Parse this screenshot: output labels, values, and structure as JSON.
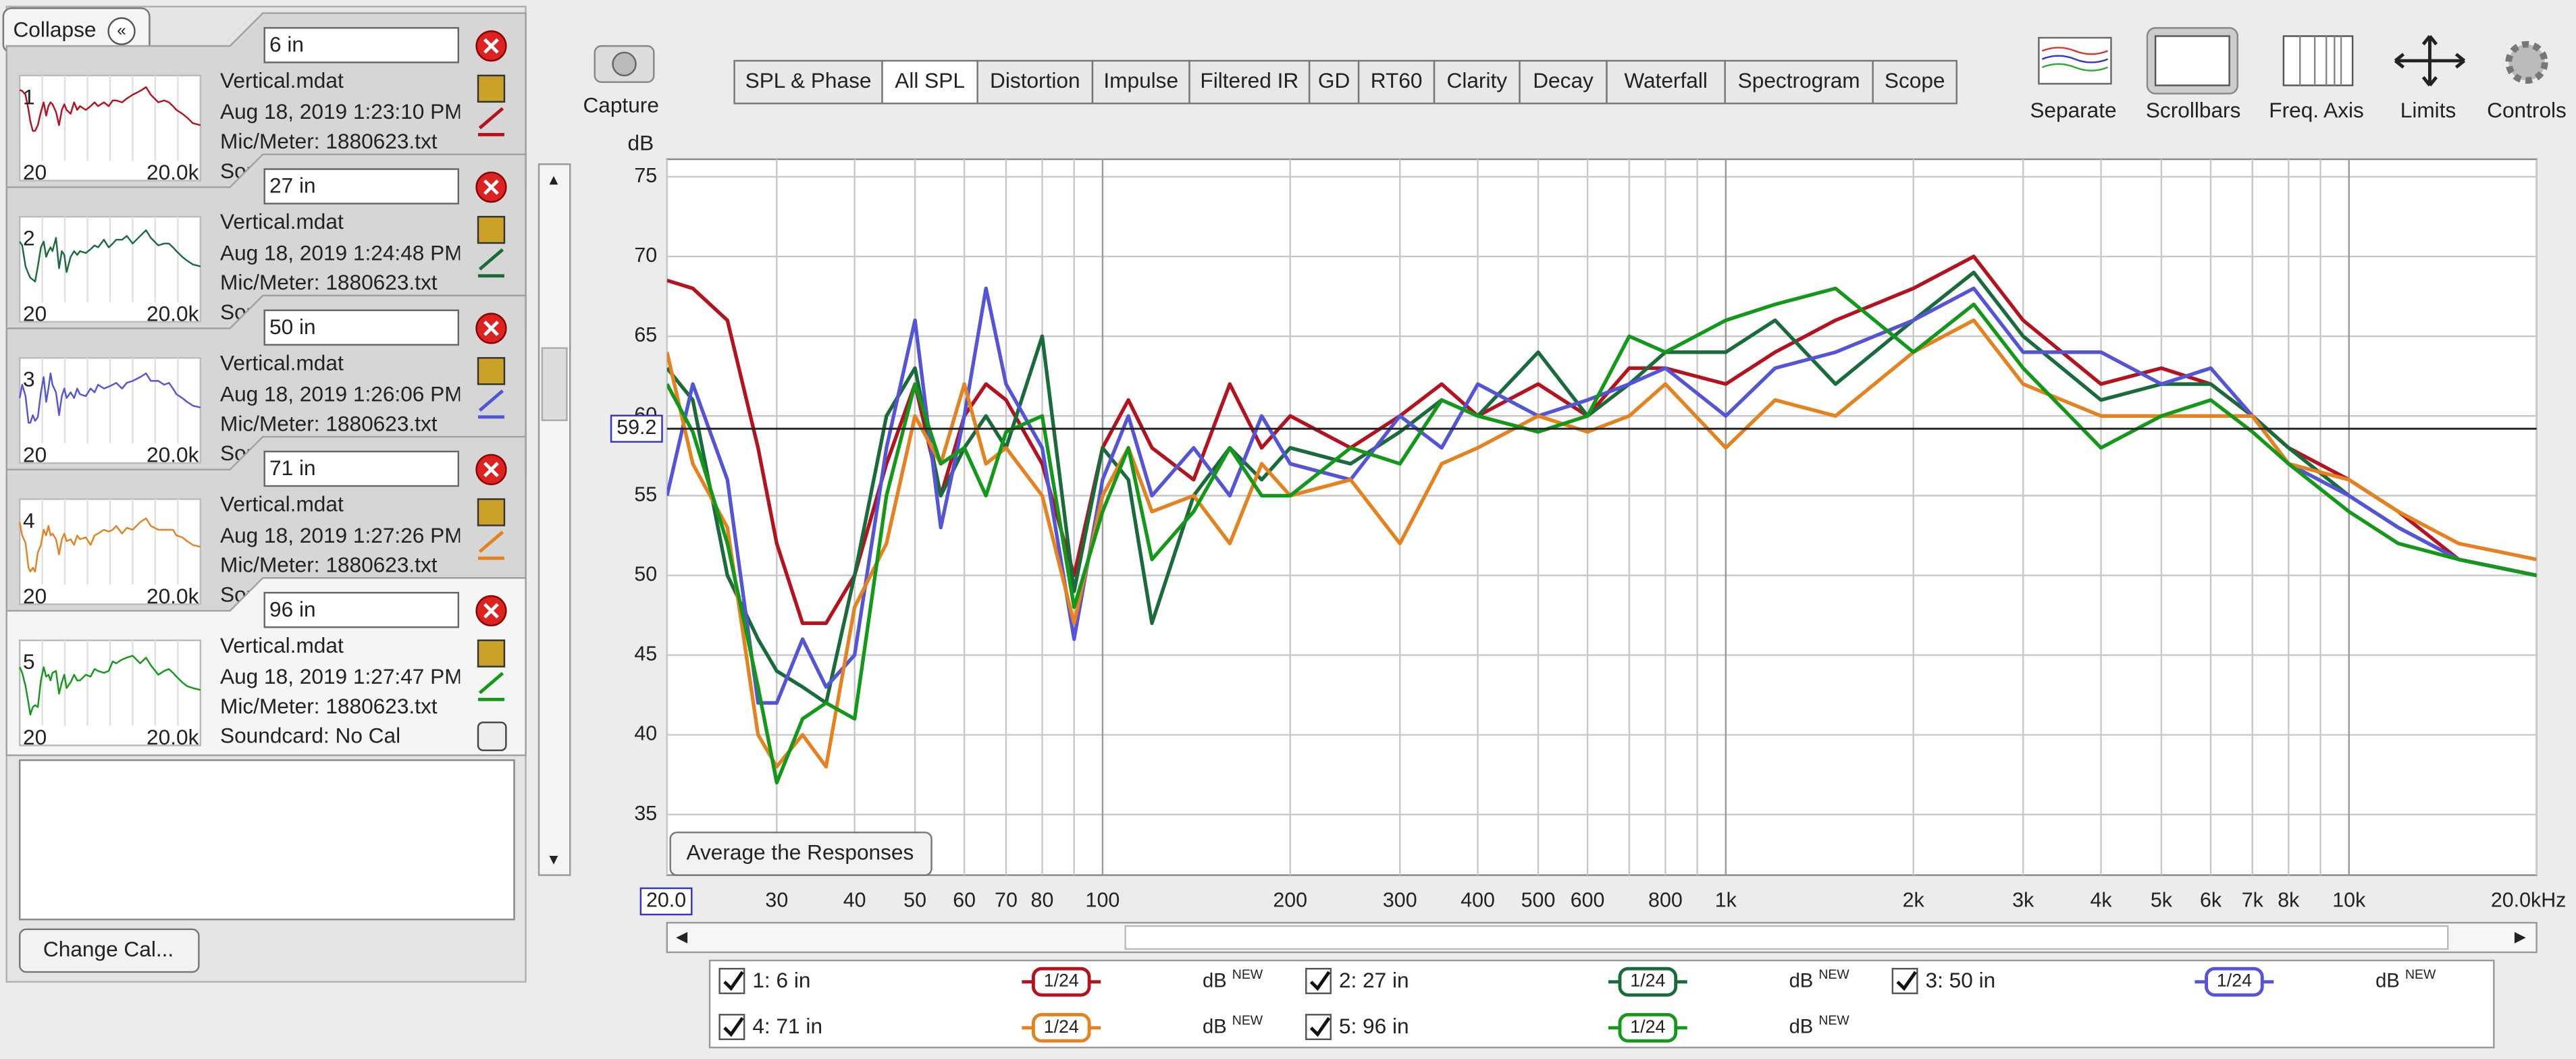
{
  "panel": {
    "collapse": "Collapse",
    "change_cal": "Change Cal..."
  },
  "measurements": [
    {
      "number": "1",
      "name": "6 in",
      "file": "Vertical.mdat",
      "date": "Aug 18, 2019 1:23:10 PM",
      "mic": "Mic/Meter: 1880623.txt",
      "soundcard": "Soundcard: No Cal",
      "thumb_min": "20",
      "thumb_max": "20.0k"
    },
    {
      "number": "2",
      "name": "27 in",
      "file": "Vertical.mdat",
      "date": "Aug 18, 2019 1:24:48 PM",
      "mic": "Mic/Meter: 1880623.txt",
      "soundcard": "Soundcard: No Cal",
      "thumb_min": "20",
      "thumb_max": "20.0k"
    },
    {
      "number": "3",
      "name": "50 in",
      "file": "Vertical.mdat",
      "date": "Aug 18, 2019 1:26:06 PM",
      "mic": "Mic/Meter: 1880623.txt",
      "soundcard": "Soundcard: No Cal",
      "thumb_min": "20",
      "thumb_max": "20.0k"
    },
    {
      "number": "4",
      "name": "71 in",
      "file": "Vertical.mdat",
      "date": "Aug 18, 2019 1:27:26 PM",
      "mic": "Mic/Meter: 1880623.txt",
      "soundcard": "Soundcard: No Cal",
      "thumb_min": "20",
      "thumb_max": "20.0k"
    },
    {
      "number": "5",
      "name": "96 in",
      "file": "Vertical.mdat",
      "date": "Aug 18, 2019 1:27:47 PM",
      "mic": "Mic/Meter: 1880623.txt",
      "soundcard": "Soundcard: No Cal",
      "thumb_min": "20",
      "thumb_max": "20.0k"
    }
  ],
  "toolbar": {
    "capture": "Capture",
    "tabs": [
      "SPL & Phase",
      "All SPL",
      "Distortion",
      "Impulse",
      "Filtered IR",
      "GD",
      "RT60",
      "Clarity",
      "Decay",
      "Waterfall",
      "Spectrogram",
      "Scope"
    ],
    "active_tab": 1,
    "tools": [
      "Separate",
      "Scrollbars",
      "Freq. Axis",
      "Limits",
      "Controls"
    ]
  },
  "chart_data": {
    "type": "line",
    "y_label": "dB",
    "x_scale": "log",
    "grid": true,
    "x": [
      20,
      22,
      25,
      28,
      30,
      33,
      36,
      40,
      45,
      50,
      55,
      60,
      65,
      70,
      80,
      90,
      100,
      110,
      120,
      140,
      160,
      180,
      200,
      250,
      300,
      350,
      400,
      500,
      600,
      700,
      800,
      1000,
      1200,
      1500,
      2000,
      2500,
      3000,
      4000,
      5000,
      6000,
      7000,
      8000,
      10000,
      12000,
      15000,
      20000
    ],
    "series": [
      {
        "name": "1: 6 in",
        "color": "#b3121e",
        "smoothing": "1/24",
        "unit": "dB",
        "badge": "NEW",
        "visible": true,
        "values": [
          68.5,
          68,
          66,
          58,
          52,
          47,
          47,
          50,
          57,
          62,
          55,
          60,
          62,
          61,
          57,
          50,
          58,
          61,
          58,
          56,
          62,
          58,
          60,
          58,
          60,
          62,
          60,
          62,
          60,
          63,
          63,
          62,
          64,
          66,
          68,
          70,
          66,
          62,
          63,
          62,
          60,
          58,
          56,
          54,
          51,
          50
        ]
      },
      {
        "name": "2: 27 in",
        "color": "#1a6b3c",
        "smoothing": "1/24",
        "unit": "dB",
        "badge": "NEW",
        "visible": true,
        "values": [
          63,
          61,
          50,
          46,
          44,
          43,
          42,
          50,
          60,
          63,
          55,
          58,
          60,
          58,
          65,
          49,
          58,
          56,
          47,
          55,
          58,
          56,
          58,
          57,
          59,
          61,
          60,
          64,
          60,
          62,
          64,
          64,
          66,
          62,
          66,
          69,
          65,
          61,
          62,
          62,
          60,
          58,
          55,
          53,
          51,
          50
        ]
      },
      {
        "name": "3: 50 in",
        "color": "#5454d6",
        "smoothing": "1/24",
        "unit": "dB",
        "badge": "NEW",
        "visible": true,
        "values": [
          55,
          62,
          56,
          42,
          42,
          46,
          43,
          45,
          58,
          66,
          53,
          60,
          68,
          62,
          58,
          46,
          56,
          60,
          55,
          58,
          55,
          60,
          57,
          56,
          60,
          58,
          62,
          60,
          61,
          62,
          63,
          60,
          63,
          64,
          66,
          68,
          64,
          64,
          62,
          63,
          60,
          57,
          55,
          53,
          51,
          50
        ]
      },
      {
        "name": "4: 71 in",
        "color": "#e3821e",
        "smoothing": "1/24",
        "unit": "dB",
        "badge": "NEW",
        "visible": true,
        "values": [
          64,
          57,
          53,
          40,
          38,
          40,
          38,
          48,
          52,
          60,
          57,
          62,
          57,
          58,
          55,
          47,
          55,
          58,
          54,
          55,
          52,
          57,
          55,
          56,
          52,
          57,
          58,
          60,
          59,
          60,
          62,
          58,
          61,
          60,
          64,
          66,
          62,
          60,
          60,
          60,
          60,
          57,
          56,
          54,
          52,
          51
        ]
      },
      {
        "name": "5: 96 in",
        "color": "#13981a",
        "smoothing": "1/24",
        "unit": "dB",
        "badge": "NEW",
        "visible": true,
        "values": [
          62,
          59,
          52,
          43,
          37,
          41,
          42,
          41,
          55,
          62,
          57,
          58,
          55,
          59,
          60,
          48,
          54,
          58,
          51,
          54,
          58,
          55,
          55,
          58,
          57,
          61,
          60,
          59,
          60,
          65,
          64,
          66,
          67,
          68,
          64,
          67,
          63,
          58,
          60,
          61,
          59,
          57,
          54,
          52,
          51,
          50
        ]
      }
    ],
    "xlim": [
      20,
      20000
    ],
    "ylim": [
      31.2,
      76.1
    ],
    "xticks": [
      {
        "value": 20,
        "label": "20.0"
      },
      30,
      40,
      50,
      60,
      70,
      80,
      100,
      200,
      300,
      400,
      500,
      600,
      800,
      {
        "value": 1000,
        "label": "1k"
      },
      {
        "value": 2000,
        "label": "2k"
      },
      {
        "value": 3000,
        "label": "3k"
      },
      {
        "value": 4000,
        "label": "4k"
      },
      {
        "value": 5000,
        "label": "5k"
      },
      {
        "value": 6000,
        "label": "6k"
      },
      {
        "value": 7000,
        "label": "7k"
      },
      {
        "value": 8000,
        "label": "8k"
      },
      {
        "value": 10000,
        "label": "10k"
      },
      {
        "value": 20000,
        "label": "20.0kHz"
      }
    ],
    "x_minor_ticks": [
      90,
      700,
      900,
      9000
    ],
    "yticks": [
      35,
      40,
      45,
      50,
      55,
      60,
      65,
      70,
      75
    ],
    "cursor_y": 59.2,
    "button": "Average the Responses"
  }
}
